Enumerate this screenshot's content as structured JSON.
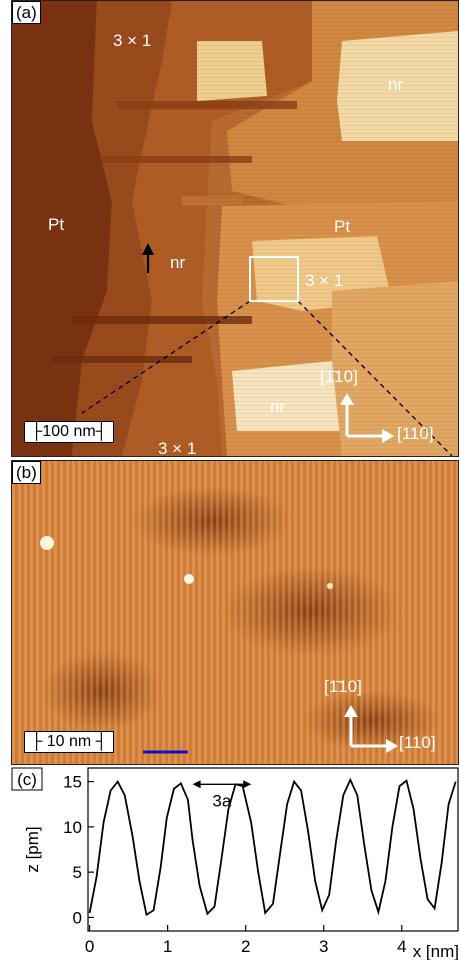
{
  "panel_a": {
    "label": "(a)",
    "region_labels": {
      "three_by_one_top": "3 × 1",
      "nr_right_top": "nr",
      "pt_left": "Pt",
      "nr_center": "nr",
      "pt_right": "Pt",
      "three_by_one_box": "3 × 1",
      "nr_bottom": "nr",
      "three_by_one_bottom": "3 × 1"
    },
    "scalebar": "├100 nm┤",
    "dir_vertical": "[1̄10]",
    "dir_horizontal": "[110]"
  },
  "panel_b": {
    "label": "(b)",
    "scalebar": "├ 10 nm ┤",
    "dir_vertical": "[1̄10]",
    "dir_horizontal": "[110]",
    "colors": {
      "scale_line": "#1010d0"
    }
  },
  "panel_c": {
    "label": "(c)",
    "annotation": "3a"
  },
  "chart_data": {
    "type": "line",
    "title": "",
    "xlabel": "x [nm]",
    "ylabel": "z [pm]",
    "xlim": [
      -0.02,
      4.72
    ],
    "ylim": [
      -1.5,
      16.5
    ],
    "xticks": [
      0,
      1,
      2,
      3,
      4
    ],
    "yticks": [
      0,
      5,
      10,
      15
    ],
    "grid": false,
    "annotation": {
      "text": "3a",
      "x_start": 1.32,
      "x_end": 2.07,
      "y": 14.7
    },
    "series": [
      {
        "x": [
          0,
          0.09,
          0.18,
          0.27,
          0.36,
          0.45,
          0.55,
          0.64,
          0.73,
          0.82,
          0.91,
          0.99,
          1.08,
          1.17,
          1.26,
          1.32,
          1.41,
          1.51,
          1.6,
          1.69,
          1.78,
          1.87,
          1.96,
          2.07,
          2.16,
          2.25,
          2.35,
          2.44,
          2.53,
          2.62,
          2.71,
          2.8,
          2.89,
          2.98,
          3.07,
          3.16,
          3.25,
          3.34,
          3.43,
          3.52,
          3.61,
          3.7,
          3.79,
          3.88,
          3.97,
          4.06,
          4.15,
          4.24,
          4.33,
          4.42,
          4.51,
          4.6,
          4.69
        ],
        "y": [
          0.5,
          4.5,
          10.5,
          14.0,
          15.0,
          13.5,
          9.0,
          4.0,
          0.3,
          0.8,
          5.5,
          11.0,
          14.2,
          14.8,
          13.0,
          8.5,
          3.5,
          0.4,
          1.2,
          6.5,
          12.0,
          14.7,
          14.5,
          10.5,
          5.0,
          0.5,
          1.5,
          7.0,
          12.5,
          15.0,
          14.0,
          9.5,
          4.0,
          0.8,
          2.5,
          8.5,
          13.5,
          15.2,
          13.5,
          8.0,
          3.0,
          0.6,
          4.0,
          10.0,
          14.5,
          15.1,
          12.0,
          6.5,
          2.0,
          1.0,
          6.0,
          12.5,
          15.0
        ]
      }
    ]
  }
}
